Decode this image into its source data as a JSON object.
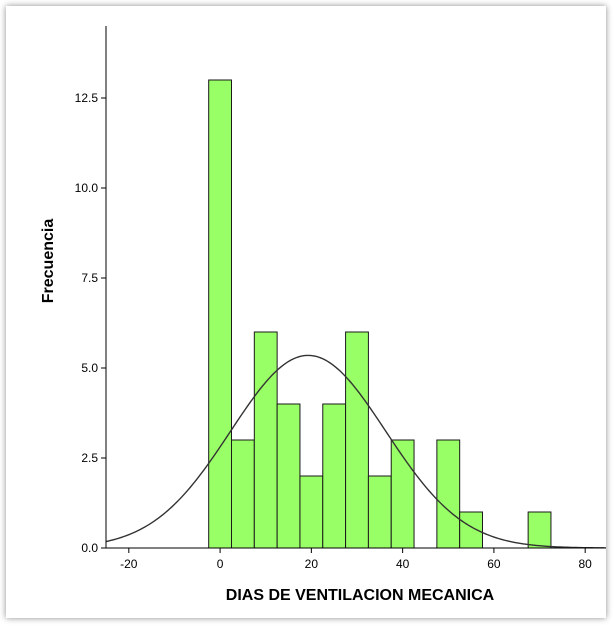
{
  "chart_data": {
    "type": "histogram",
    "xlabel": "DIAS DE VENTILACION MECANICA",
    "ylabel": "Frecuencia",
    "xlim": [
      -25,
      85
    ],
    "ylim": [
      0,
      14.5
    ],
    "xticks": [
      -20,
      0,
      20,
      40,
      60,
      80
    ],
    "xtick_labels": [
      "-20",
      "0",
      "20",
      "40",
      "60",
      "80"
    ],
    "yticks": [
      0,
      2.5,
      5,
      7.5,
      10,
      12.5
    ],
    "ytick_labels": [
      "0.0",
      "2.5",
      "5.0",
      "7.5",
      "10.0",
      "12.5"
    ],
    "bin_width": 5,
    "bins": [
      {
        "start": -2.5,
        "end": 2.5,
        "count": 13
      },
      {
        "start": 2.5,
        "end": 7.5,
        "count": 3
      },
      {
        "start": 7.5,
        "end": 12.5,
        "count": 6
      },
      {
        "start": 12.5,
        "end": 17.5,
        "count": 4
      },
      {
        "start": 17.5,
        "end": 22.5,
        "count": 2
      },
      {
        "start": 22.5,
        "end": 27.5,
        "count": 4
      },
      {
        "start": 27.5,
        "end": 32.5,
        "count": 6
      },
      {
        "start": 32.5,
        "end": 37.5,
        "count": 2
      },
      {
        "start": 37.5,
        "end": 42.5,
        "count": 3
      },
      {
        "start": 47.5,
        "end": 52.5,
        "count": 3
      },
      {
        "start": 52.5,
        "end": 57.5,
        "count": 1
      },
      {
        "start": 67.5,
        "end": 72.5,
        "count": 1
      }
    ],
    "normal_curve": {
      "mean": 19.3,
      "sd": 17,
      "peak": 5.35
    },
    "colors": {
      "bar_fill": "#99ff66",
      "bar_stroke": "#1a1a1a",
      "curve": "#333333"
    },
    "grid": false
  }
}
